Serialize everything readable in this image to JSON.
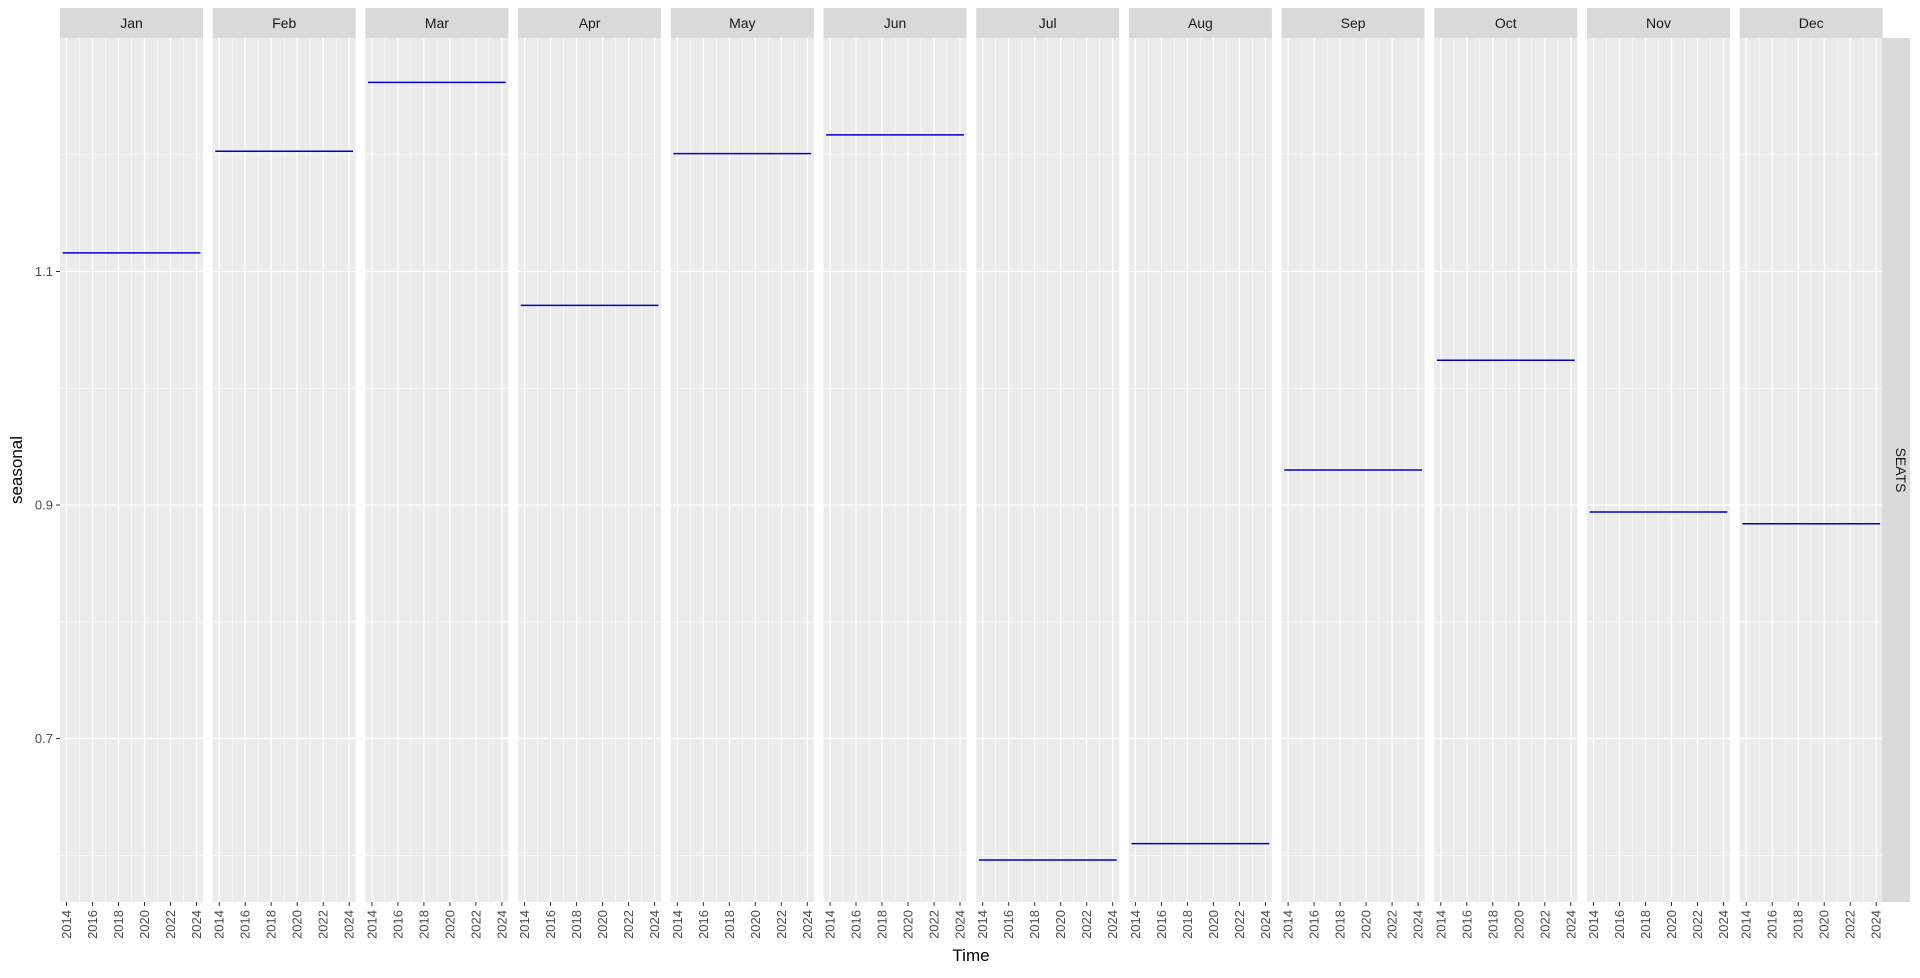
{
  "chart_data": {
    "type": "line",
    "xlabel": "Time",
    "ylabel": "seasonal",
    "strip_right": "SEATS",
    "x_ticks": [
      "2014",
      "2016",
      "2018",
      "2020",
      "2022",
      "2024"
    ],
    "xlim": [
      2013.5,
      2024.5
    ],
    "y_ticks": [
      "0.7",
      "0.9",
      "1.1"
    ],
    "ylim": [
      0.56,
      1.3
    ],
    "line_color": "#0000cc",
    "panel_bg": "#ebebeb",
    "strip_bg": "#d9d9d9",
    "facets": [
      {
        "month": "Jan",
        "x": [
          2013.7,
          2024.3
        ],
        "y": [
          1.116,
          1.116
        ]
      },
      {
        "month": "Feb",
        "x": [
          2013.7,
          2024.3
        ],
        "y": [
          1.203,
          1.203
        ]
      },
      {
        "month": "Mar",
        "x": [
          2013.7,
          2024.3
        ],
        "y": [
          1.262,
          1.262
        ]
      },
      {
        "month": "Apr",
        "x": [
          2013.7,
          2024.3
        ],
        "y": [
          1.071,
          1.071
        ]
      },
      {
        "month": "May",
        "x": [
          2013.7,
          2024.3
        ],
        "y": [
          1.201,
          1.201
        ]
      },
      {
        "month": "Jun",
        "x": [
          2013.7,
          2024.3
        ],
        "y": [
          1.217,
          1.217
        ]
      },
      {
        "month": "Jul",
        "x": [
          2013.7,
          2024.3
        ],
        "y": [
          0.596,
          0.596
        ]
      },
      {
        "month": "Aug",
        "x": [
          2013.7,
          2024.3
        ],
        "y": [
          0.61,
          0.61
        ]
      },
      {
        "month": "Sep",
        "x": [
          2013.7,
          2024.3
        ],
        "y": [
          0.93,
          0.93
        ]
      },
      {
        "month": "Oct",
        "x": [
          2013.7,
          2024.3
        ],
        "y": [
          1.024,
          1.024
        ]
      },
      {
        "month": "Nov",
        "x": [
          2013.7,
          2024.3
        ],
        "y": [
          0.894,
          0.894
        ]
      },
      {
        "month": "Dec",
        "x": [
          2013.7,
          2024.3
        ],
        "y": [
          0.884,
          0.884
        ]
      }
    ]
  }
}
